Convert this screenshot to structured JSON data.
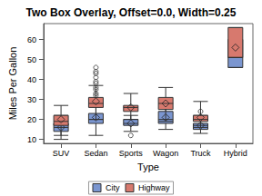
{
  "chart_data": {
    "type": "boxplot",
    "title": "Two Box Overlay, Offset=0.0, Width=0.25",
    "x_label": "Type",
    "y_label": "Miles Per Gallon",
    "categories": [
      "SUV",
      "Sedan",
      "Sports",
      "Wagon",
      "Truck",
      "Hybrid"
    ],
    "series": [
      {
        "name": "City",
        "color": "#7b96d0",
        "boxes": [
          [
            10,
            14,
            16,
            18,
            22
          ],
          [
            12,
            18,
            20,
            23,
            30
          ],
          [
            14,
            17,
            18,
            20,
            22
          ],
          [
            15,
            18,
            20,
            24,
            28
          ],
          [
            13,
            15,
            17,
            18,
            22
          ],
          [
            46,
            46,
            59,
            60,
            60
          ]
        ],
        "means": [
          16,
          21,
          18,
          21,
          17,
          55
        ],
        "outliers": [
          [],
          [
            32,
            33,
            35,
            36
          ],
          [
            12
          ],
          [],
          [
            24
          ],
          []
        ]
      },
      {
        "name": "Highway",
        "color": "#d7796e",
        "boxes": [
          [
            12,
            17,
            19,
            22,
            27
          ],
          [
            20,
            26,
            28,
            31,
            37
          ],
          [
            20,
            24,
            26,
            27,
            33
          ],
          [
            19,
            25,
            28,
            31,
            36
          ],
          [
            16,
            19,
            20,
            22,
            29
          ],
          [
            51,
            51,
            51,
            66,
            66
          ]
        ],
        "means": [
          20,
          29,
          26,
          28,
          21,
          56
        ],
        "outliers": [
          [],
          [
            38,
            39,
            41,
            43,
            44,
            46
          ],
          [],
          [],
          [],
          []
        ]
      }
    ],
    "ylim": [
      8,
      68
    ],
    "yticks": [
      10,
      20,
      30,
      40,
      50,
      60
    ],
    "legend": "bottom",
    "grid": false
  }
}
